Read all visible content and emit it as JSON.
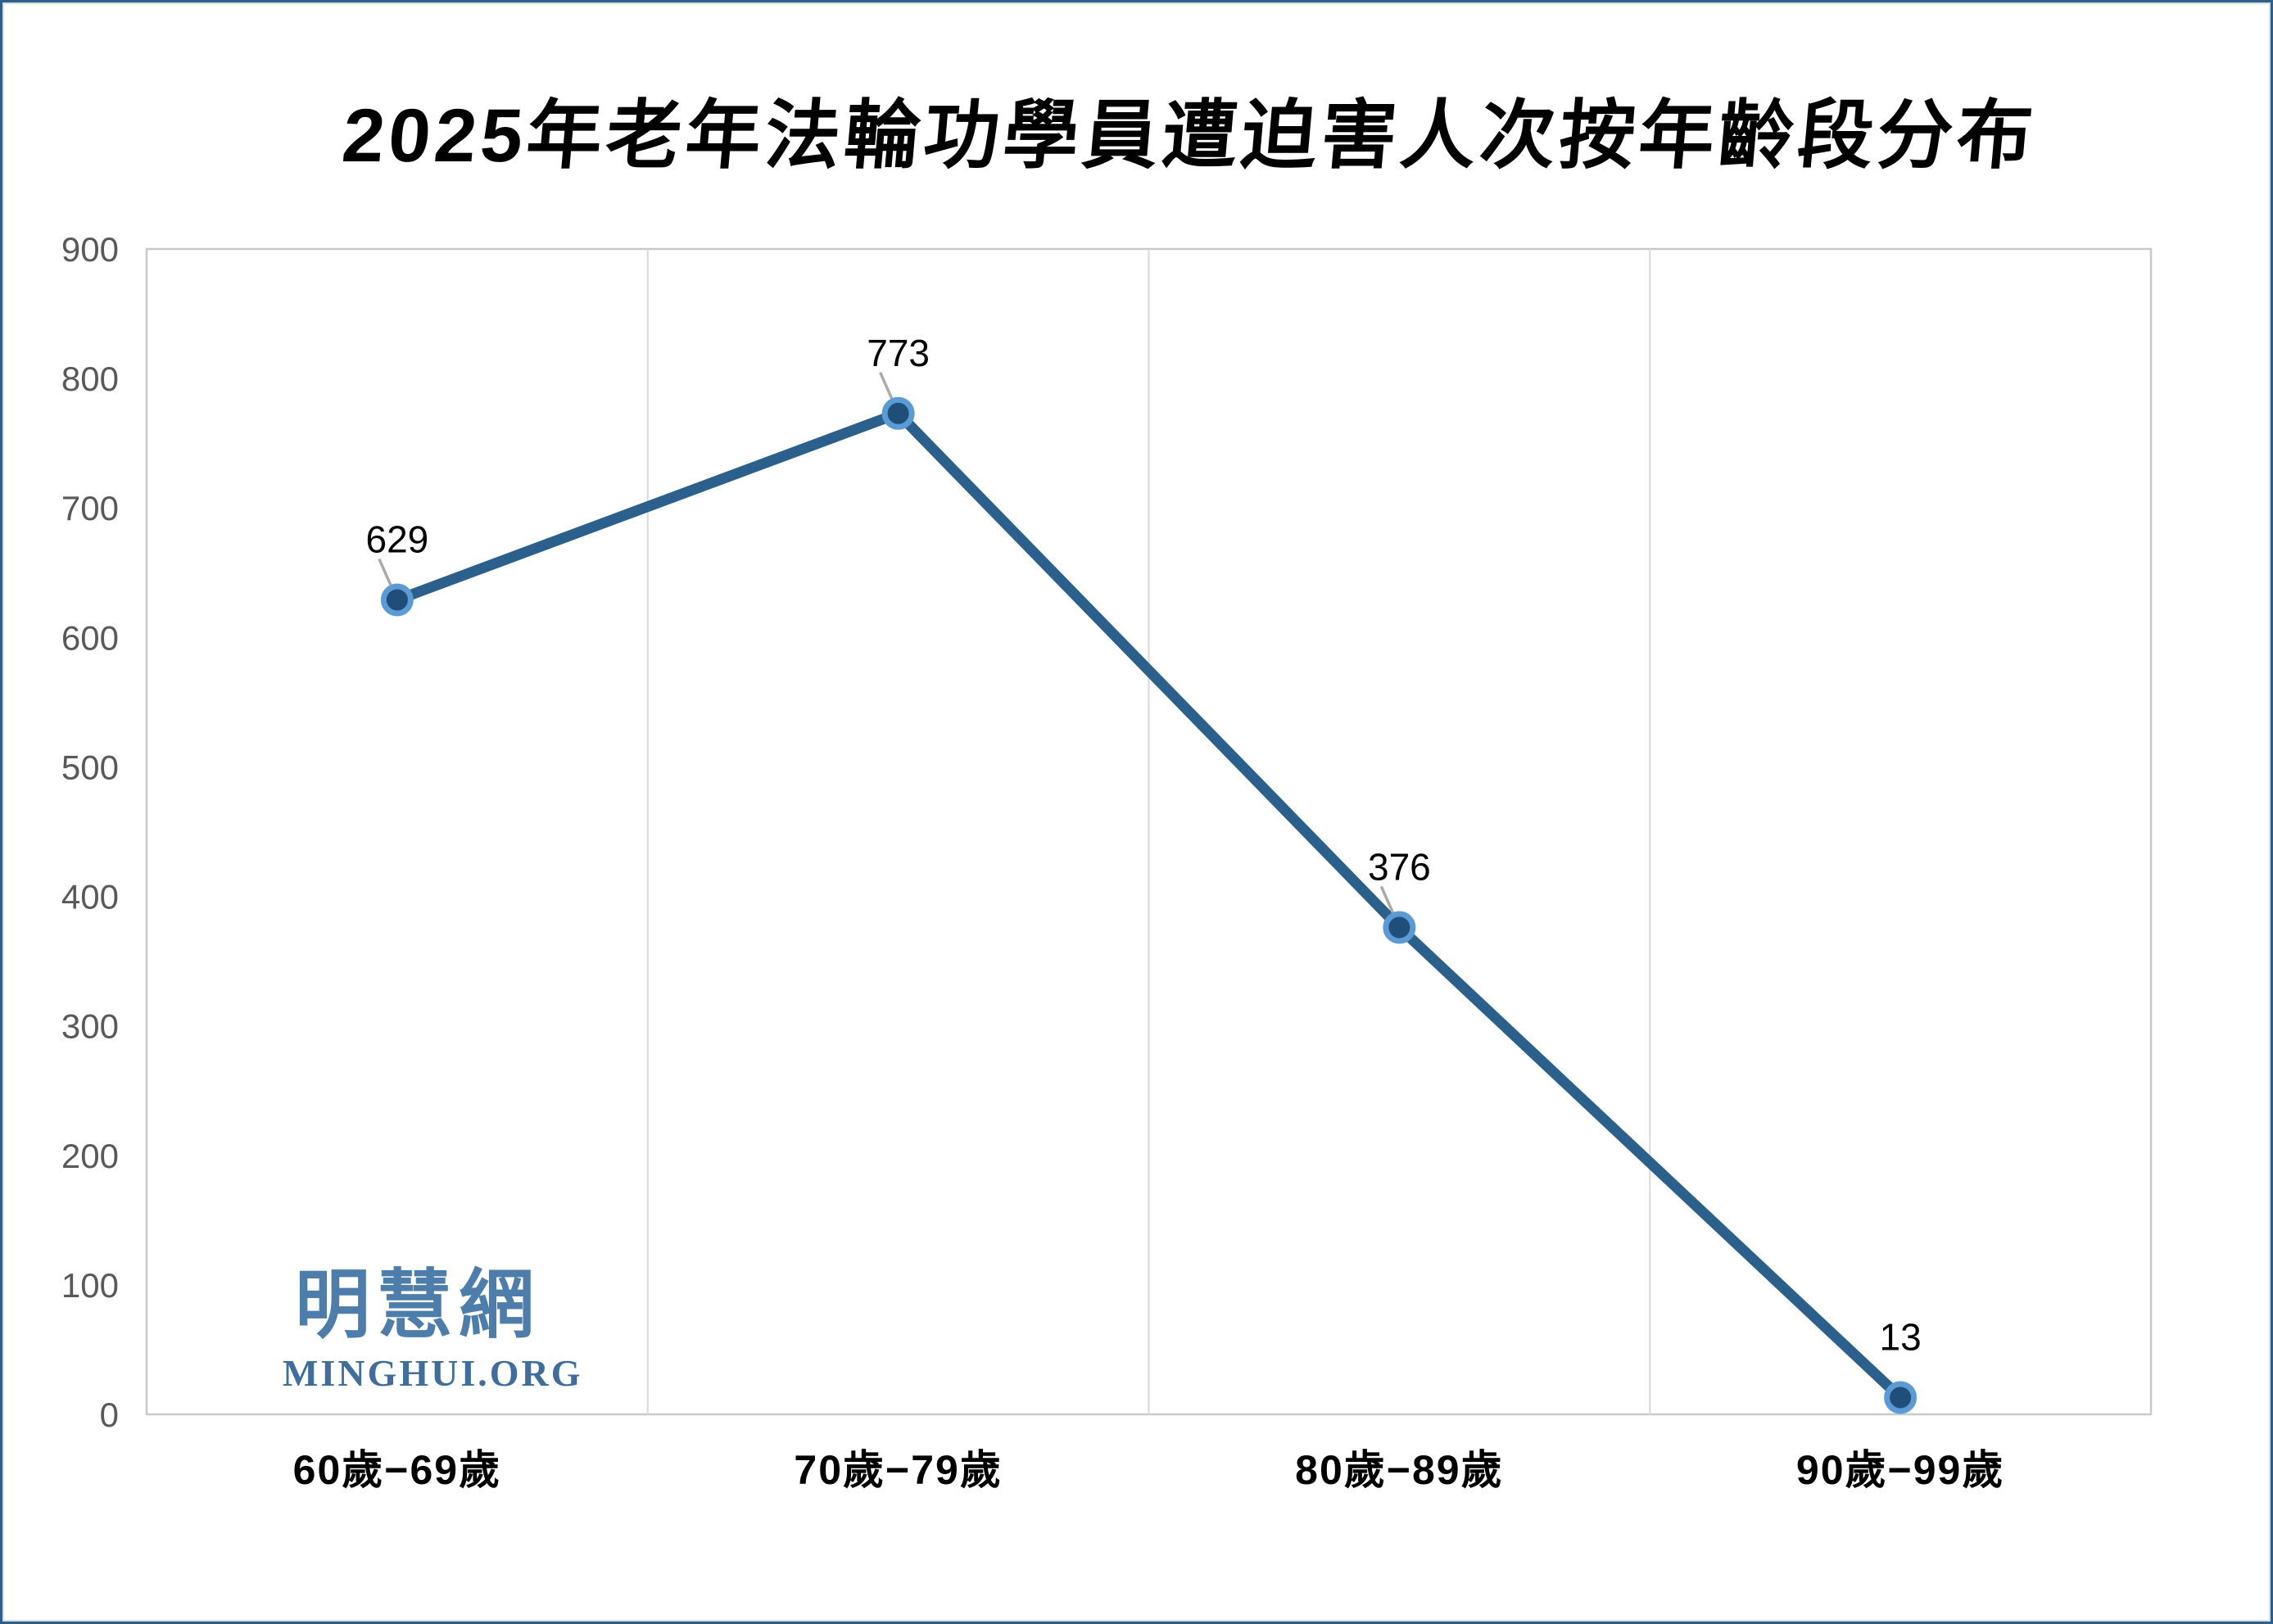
{
  "watermark": {
    "cjk": "明慧網",
    "latin": "MINGHUI.ORG",
    "cjk_color": "#4d7dab",
    "latin_color": "#3f6d9e"
  },
  "chart_data": {
    "type": "line",
    "title": "2025年老年法輪功學員遭迫害人次按年齡段分布",
    "categories": [
      "60歲−69歲",
      "70歲−79歲",
      "80歲−89歲",
      "90歲−99歲"
    ],
    "values": [
      629,
      773,
      376,
      13
    ],
    "data_labels": [
      "629",
      "773",
      "376",
      "13"
    ],
    "xlabel": "",
    "ylabel": "",
    "ylim": [
      0,
      900
    ],
    "yticks": [
      0,
      100,
      200,
      300,
      400,
      500,
      600,
      700,
      800,
      900
    ],
    "grid": "vertical-only",
    "legend_position": "none",
    "leader_lines": [
      true,
      true,
      true,
      false
    ],
    "colors": {
      "line": "#2b5f8c",
      "marker_fill": "#1f4e79",
      "marker_ring": "#5b9bd5",
      "grid": "#d9d9d9",
      "axis_border": "#c9c9c9",
      "ytick_color": "#595959",
      "xlabel_color": "#000000",
      "data_label_color": "#000000",
      "leader": "#ababab"
    }
  }
}
